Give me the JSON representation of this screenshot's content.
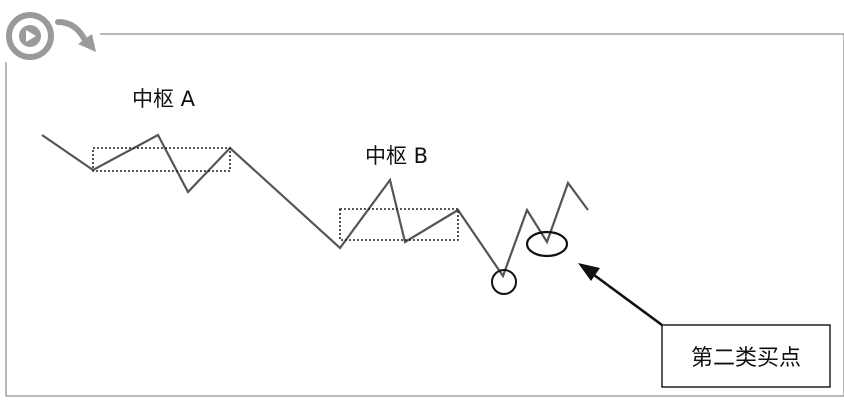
{
  "labels": {
    "center_a": "中枢 A",
    "center_b": "中枢 B",
    "callout": "第二类买点"
  },
  "icons": {
    "logo": "play-circle-with-arrow-icon"
  },
  "colors": {
    "frame": "#8a8a8a",
    "line": "#555555",
    "box": "#222222",
    "text": "#111111",
    "logo": "#9a9a9a"
  }
}
